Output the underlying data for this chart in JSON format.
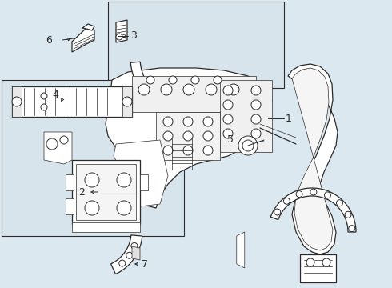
{
  "bg_color": "#dce8f0",
  "white": "#ffffff",
  "lc": "#2a2a2a",
  "box_bg": "#d8e4ec",
  "lw_main": 0.9,
  "lw_thin": 0.5,
  "label_fs": 9
}
